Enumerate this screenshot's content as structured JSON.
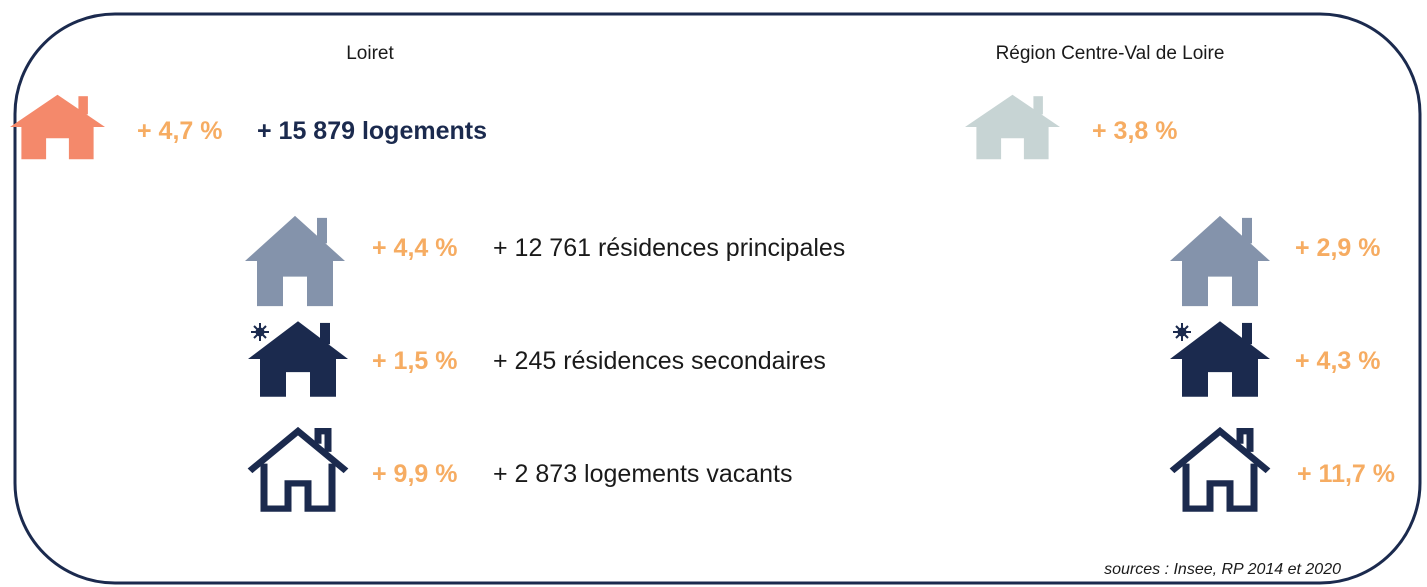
{
  "header": {
    "left": "Loiret",
    "right": "Région Centre-Val de Loire"
  },
  "total": {
    "pct": "+ 4,7 %",
    "label": "+ 15 879 logements",
    "region_pct": "+ 3,8 %"
  },
  "rows": [
    {
      "pct": "+ 4,4 %",
      "label": "+ 12 761 résidences principales",
      "region_pct": "+ 2,9 %"
    },
    {
      "pct": "+ 1,5 %",
      "label": "+ 245 résidences secondaires",
      "region_pct": "+ 4,3 %"
    },
    {
      "pct": "+ 9,9 %",
      "label": "+ 2 873 logements vacants",
      "region_pct": "+ 11,7 %"
    }
  ],
  "source": "sources : Insee, RP 2014 et 2020"
}
